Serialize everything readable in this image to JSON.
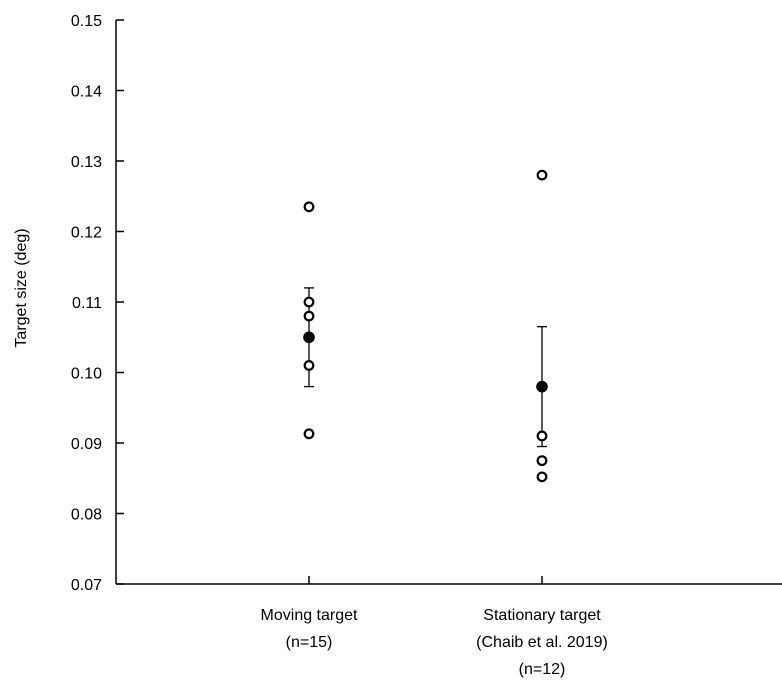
{
  "chart_data": {
    "type": "scatter",
    "title": "",
    "ylabel": "Target size (deg)",
    "xlabel": "",
    "ylim": [
      0.07,
      0.15
    ],
    "yticks": [
      "0.07",
      "0.08",
      "0.09",
      "0.10",
      "0.11",
      "0.12",
      "0.13",
      "0.14",
      "0.15"
    ],
    "grid": false,
    "categories": [
      {
        "lines": [
          "Moving target",
          "(n=15)"
        ]
      },
      {
        "lines": [
          "Stationary target",
          "(Chaib et al. 2019)",
          "(n=12)"
        ]
      }
    ],
    "series": [
      {
        "individual": [
          0.1235,
          0.11,
          0.108,
          0.101,
          0.0913
        ],
        "mean": 0.105,
        "error_low": 0.098,
        "error_high": 0.112
      },
      {
        "individual": [
          0.128,
          0.091,
          0.0875,
          0.0852
        ],
        "mean": 0.098,
        "error_low": 0.0895,
        "error_high": 0.1065
      }
    ],
    "colors": {
      "marker": "#000000",
      "axis": "#000000"
    }
  }
}
